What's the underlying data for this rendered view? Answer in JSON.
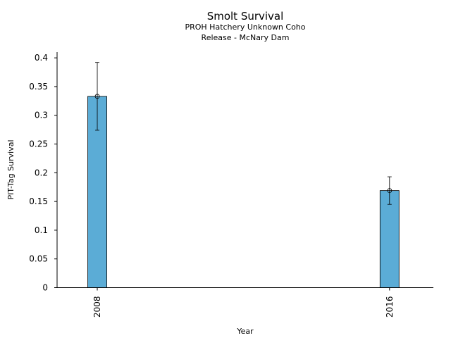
{
  "chart_data": {
    "type": "bar",
    "title": "Smolt Survival",
    "subtitle_lines": [
      "PROH Hatchery Unknown Coho",
      "Release - McNary Dam"
    ],
    "xlabel": "Year",
    "ylabel": "PIT-Tag Survival",
    "categories": [
      "2008",
      "2016"
    ],
    "x_range": [
      2006.9,
      2017.2
    ],
    "values": [
      0.333,
      0.169
    ],
    "error_low": [
      0.274,
      0.145
    ],
    "error_high": [
      0.392,
      0.193
    ],
    "ylim": [
      0,
      0.41
    ],
    "yticks": [
      0,
      0.05,
      0.1,
      0.15,
      0.2,
      0.25,
      0.3,
      0.35,
      0.4
    ],
    "ytick_labels": [
      "0",
      "0.05",
      "0.1",
      "0.15",
      "0.2",
      "0.25",
      "0.3",
      "0.35",
      "0.4"
    ],
    "bar_color": "#5bacd6",
    "grid": false,
    "legend": "none"
  }
}
